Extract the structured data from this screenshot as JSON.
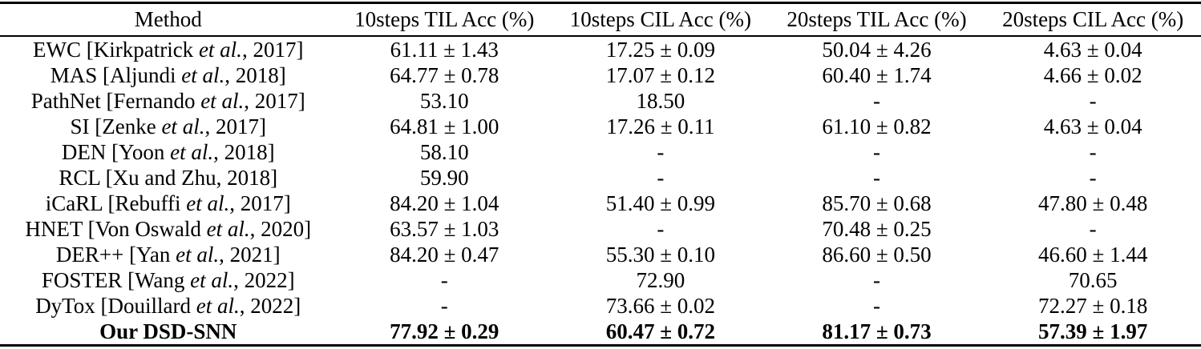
{
  "table": {
    "columns": [
      "Method",
      "10steps TIL Acc (%)",
      "10steps CIL Acc (%)",
      "20steps TIL Acc (%)",
      "20steps CIL Acc (%)"
    ],
    "rows": [
      {
        "method": {
          "pre": "EWC [Kirkpatrick ",
          "etal": "et al.",
          "post": ", 2017]"
        },
        "values": [
          "61.11 ± 1.43",
          "17.25 ± 0.09",
          "50.04 ± 4.26",
          "4.63 ± 0.04"
        ]
      },
      {
        "method": {
          "pre": "MAS [Aljundi ",
          "etal": "et al.",
          "post": ", 2018]"
        },
        "values": [
          "64.77 ± 0.78",
          "17.07 ± 0.12",
          "60.40 ± 1.74",
          "4.66 ± 0.02"
        ]
      },
      {
        "method": {
          "pre": "PathNet [Fernando ",
          "etal": "et al.",
          "post": ", 2017]"
        },
        "values": [
          "53.10",
          "18.50",
          "-",
          "-"
        ]
      },
      {
        "method": {
          "pre": "SI [Zenke ",
          "etal": "et al.",
          "post": ", 2017]"
        },
        "values": [
          "64.81 ± 1.00",
          "17.26 ± 0.11",
          "61.10 ± 0.82",
          "4.63 ± 0.04"
        ]
      },
      {
        "method": {
          "pre": "DEN [Yoon ",
          "etal": "et al.",
          "post": ", 2018]"
        },
        "values": [
          "58.10",
          "-",
          "-",
          "-"
        ]
      },
      {
        "method": {
          "pre": "RCL [Xu and Zhu, 2018]",
          "etal": "",
          "post": ""
        },
        "values": [
          "59.90",
          "-",
          "-",
          "-"
        ]
      },
      {
        "method": {
          "pre": "iCaRL [Rebuffi ",
          "etal": "et al.",
          "post": ", 2017]"
        },
        "values": [
          "84.20 ± 1.04",
          "51.40 ± 0.99",
          "85.70 ± 0.68",
          "47.80 ± 0.48"
        ]
      },
      {
        "method": {
          "pre": "HNET [Von Oswald ",
          "etal": "et al.",
          "post": ", 2020]"
        },
        "values": [
          "63.57 ± 1.03",
          "-",
          "70.48 ± 0.25",
          "-"
        ]
      },
      {
        "method": {
          "pre": "DER++ [Yan ",
          "etal": "et al.",
          "post": ", 2021]"
        },
        "values": [
          "84.20 ± 0.47",
          "55.30 ± 0.10",
          "86.60 ± 0.50",
          "46.60 ± 1.44"
        ]
      },
      {
        "method": {
          "pre": "FOSTER [Wang ",
          "etal": "et al.",
          "post": ", 2022]"
        },
        "values": [
          "-",
          "72.90",
          "-",
          "70.65"
        ]
      },
      {
        "method": {
          "pre": "DyTox [Douillard ",
          "etal": "et al.",
          "post": ", 2022]"
        },
        "values": [
          "-",
          "73.66 ± 0.02",
          "-",
          "72.27 ± 0.18"
        ]
      },
      {
        "method": {
          "pre": "Our DSD-SNN",
          "etal": "",
          "post": ""
        },
        "values": [
          "77.92 ± 0.29",
          "60.47 ± 0.72",
          "81.17 ± 0.73",
          "57.39 ± 1.97"
        ],
        "bold": true
      }
    ]
  }
}
